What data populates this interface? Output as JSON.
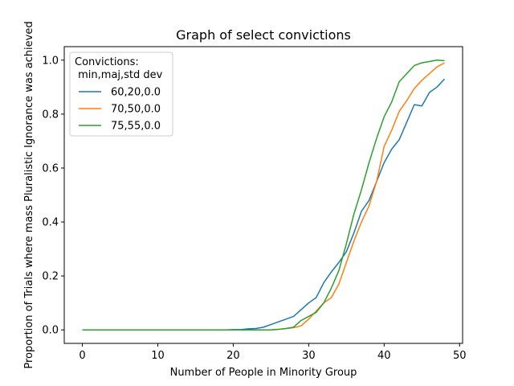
{
  "chart_data": {
    "type": "line",
    "title": "Graph of select convictions",
    "xlabel": "Number of People in Minority Group",
    "ylabel": "Proportion of Trials where mass Pluralistic Ignorance was achieved",
    "xlim": [
      -2.4,
      50.4
    ],
    "ylim": [
      -0.05,
      1.05
    ],
    "x_ticks": [
      0,
      10,
      20,
      30,
      40,
      50
    ],
    "y_ticks": [
      0.0,
      0.2,
      0.4,
      0.6,
      0.8,
      1.0
    ],
    "x_tick_labels": [
      "0",
      "10",
      "20",
      "30",
      "40",
      "50"
    ],
    "y_tick_labels": [
      "0.0",
      "0.2",
      "0.4",
      "0.6",
      "0.8",
      "1.0"
    ],
    "grid": false,
    "legend": {
      "title_line1": "Convictions:",
      "title_line2": " min,maj,std dev",
      "placement": "upper-left"
    },
    "x": [
      0,
      1,
      2,
      3,
      4,
      5,
      6,
      7,
      8,
      9,
      10,
      11,
      12,
      13,
      14,
      15,
      16,
      17,
      18,
      19,
      20,
      21,
      22,
      23,
      24,
      25,
      26,
      27,
      28,
      29,
      30,
      31,
      32,
      33,
      34,
      35,
      36,
      37,
      38,
      39,
      40,
      41,
      42,
      43,
      44,
      45,
      46,
      47,
      48
    ],
    "series": [
      {
        "name": "60,20,0.0",
        "color": "#1f77b4",
        "values": [
          0,
          0,
          0,
          0,
          0,
          0,
          0,
          0,
          0,
          0,
          0,
          0,
          0,
          0,
          0,
          0,
          0,
          0,
          0,
          0,
          0.001,
          0.001,
          0.004,
          0.005,
          0.01,
          0.02,
          0.03,
          0.04,
          0.05,
          0.075,
          0.1,
          0.12,
          0.175,
          0.215,
          0.25,
          0.29,
          0.36,
          0.44,
          0.48,
          0.55,
          0.62,
          0.67,
          0.705,
          0.77,
          0.835,
          0.83,
          0.88,
          0.9,
          0.93
        ]
      },
      {
        "name": "70,50,0.0",
        "color": "#ff7f0e",
        "values": [
          0,
          0,
          0,
          0,
          0,
          0,
          0,
          0,
          0,
          0,
          0,
          0,
          0,
          0,
          0,
          0,
          0,
          0,
          0,
          0,
          0,
          0,
          0,
          0,
          0,
          0,
          0.002,
          0.005,
          0.008,
          0.015,
          0.04,
          0.07,
          0.1,
          0.12,
          0.17,
          0.25,
          0.33,
          0.4,
          0.46,
          0.55,
          0.68,
          0.74,
          0.81,
          0.85,
          0.895,
          0.925,
          0.95,
          0.975,
          0.99
        ]
      },
      {
        "name": "75,55,0.0",
        "color": "#2ca02c",
        "values": [
          0,
          0,
          0,
          0,
          0,
          0,
          0,
          0,
          0,
          0,
          0,
          0,
          0,
          0,
          0,
          0,
          0,
          0,
          0,
          0,
          0,
          0,
          0,
          0,
          0,
          0,
          0.002,
          0.005,
          0.01,
          0.035,
          0.05,
          0.065,
          0.1,
          0.155,
          0.22,
          0.32,
          0.43,
          0.52,
          0.62,
          0.71,
          0.79,
          0.845,
          0.92,
          0.95,
          0.98,
          0.99,
          0.995,
          1.0,
          0.998
        ]
      }
    ]
  }
}
